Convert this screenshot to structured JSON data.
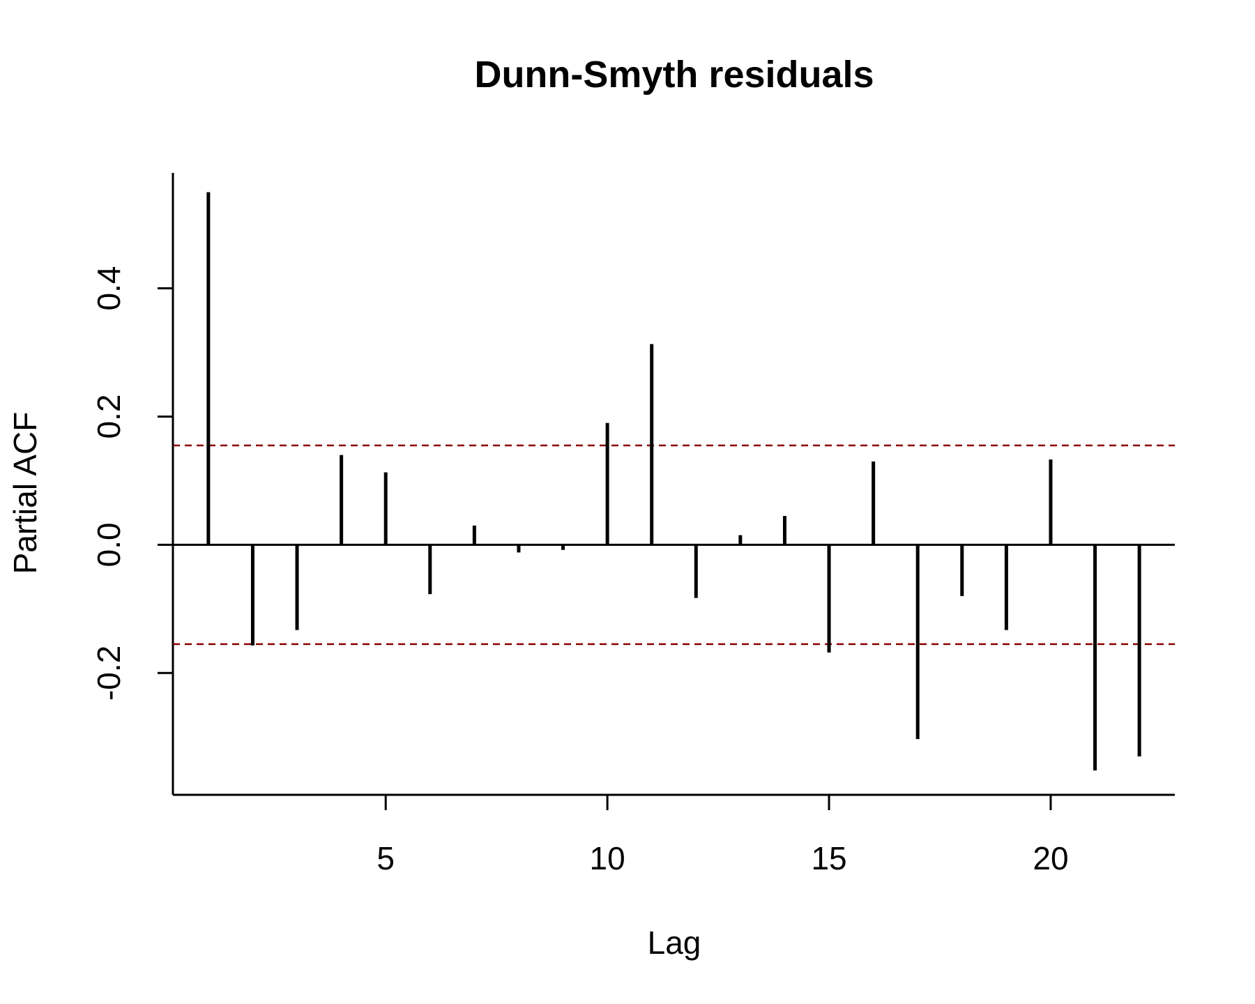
{
  "chart_data": {
    "type": "bar",
    "title": "Dunn-Smyth residuals",
    "xlabel": "Lag",
    "ylabel": "Partial ACF",
    "x": [
      1,
      2,
      3,
      4,
      5,
      6,
      7,
      8,
      9,
      10,
      11,
      12,
      13,
      14,
      15,
      16,
      17,
      18,
      19,
      20,
      21,
      22
    ],
    "values": [
      0.55,
      -0.157,
      -0.133,
      0.14,
      0.113,
      -0.077,
      0.03,
      -0.012,
      -0.008,
      0.19,
      0.313,
      -0.083,
      0.015,
      0.045,
      -0.168,
      0.13,
      -0.303,
      -0.08,
      -0.133,
      0.133,
      -0.352,
      -0.33
    ],
    "confidence_bound": 0.155,
    "xlim": [
      0.2,
      22.8
    ],
    "ylim": [
      -0.39,
      0.58
    ],
    "xticks": [
      5,
      10,
      15,
      20
    ],
    "yticks": [
      -0.2,
      0.0,
      0.2,
      0.4
    ],
    "ytick_labels": [
      "-0.2",
      "0.0",
      "0.2",
      "0.4"
    ],
    "grid": false,
    "bar_color": "#000000",
    "ci_color": "#8b0000"
  }
}
